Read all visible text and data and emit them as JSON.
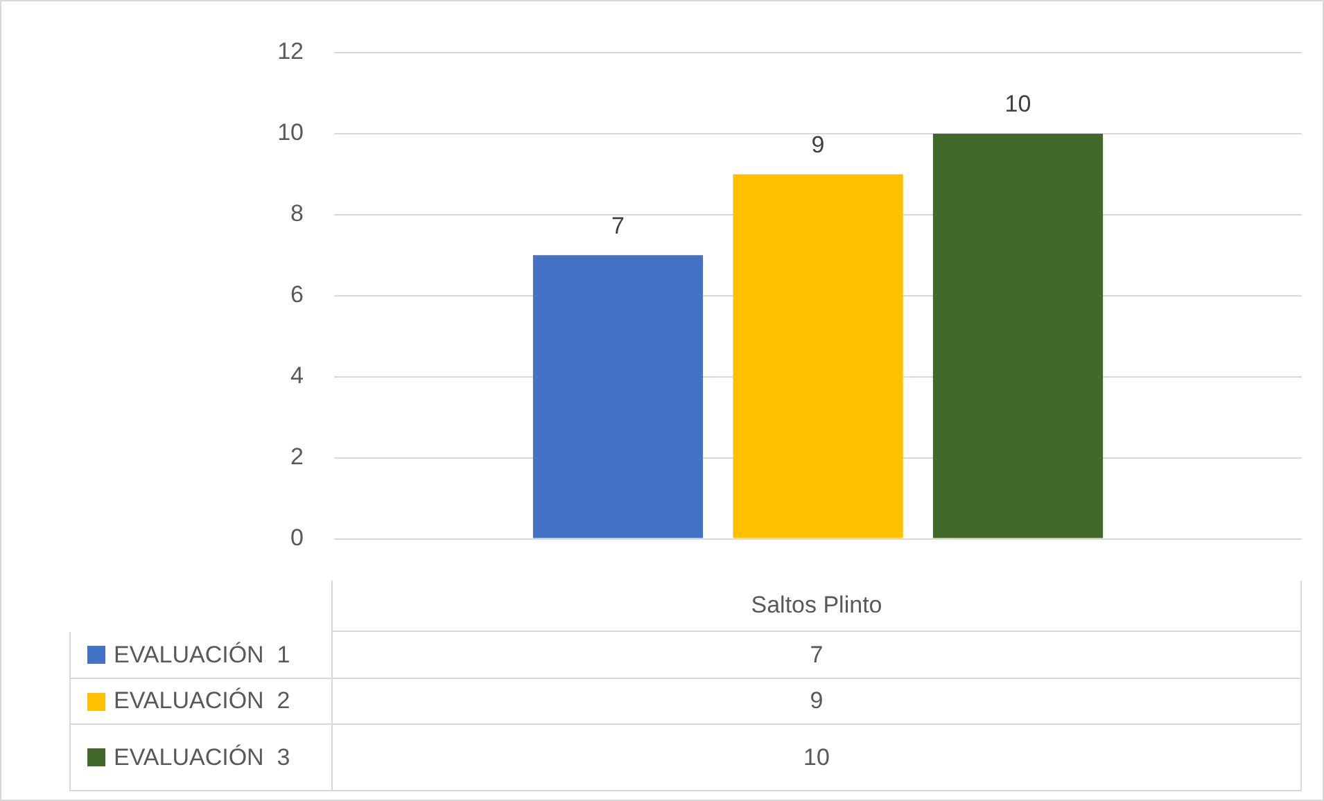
{
  "chart_data": {
    "type": "bar",
    "categories": [
      "Saltos Plinto"
    ],
    "series": [
      {
        "name": "EVALUACIÓN  1",
        "color": "#4472c4",
        "values": [
          7
        ],
        "value_labels": [
          "7"
        ]
      },
      {
        "name": "EVALUACIÓN  2",
        "color": "#ffc000",
        "values": [
          9
        ],
        "value_labels": [
          "9"
        ]
      },
      {
        "name": "EVALUACIÓN  3",
        "color": "#43682b",
        "values": [
          10
        ],
        "value_labels": [
          "10"
        ]
      }
    ],
    "ylim": [
      0,
      12
    ],
    "yticks": [
      0,
      2,
      4,
      6,
      8,
      10,
      12
    ],
    "annotations": [
      "7",
      "9",
      "10"
    ],
    "grid": "y",
    "legend": "bottom",
    "data_labels": true
  }
}
